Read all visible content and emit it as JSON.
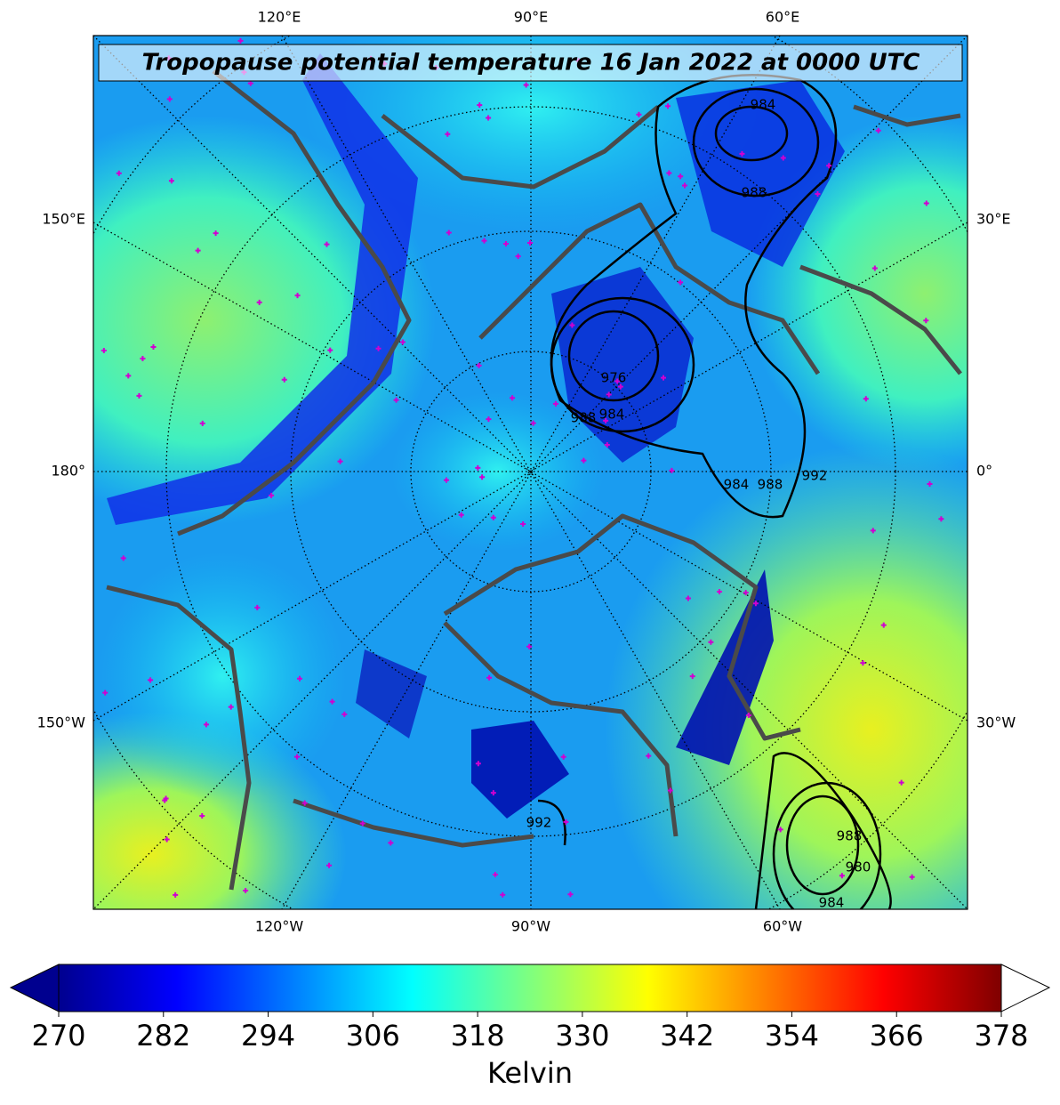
{
  "title": "Tropopause potential temperature 16 Jan 2022 at 0000 UTC",
  "lon_labels": {
    "top": [
      "120°E",
      "90°E",
      "60°E"
    ],
    "bottom": [
      "120°W",
      "90°W",
      "60°W"
    ]
  },
  "lat_labels": {
    "left": [
      "150°E",
      "180°",
      "150°W"
    ],
    "right": [
      "30°E",
      "0°",
      "30°W"
    ]
  },
  "contour_labels": [
    "984",
    "988",
    "976",
    "984",
    "988",
    "992",
    "984",
    "988",
    "992",
    "988",
    "980",
    "984"
  ],
  "colorbar": {
    "label": "Kelvin",
    "range": [
      270,
      378
    ],
    "ticks": [
      270,
      282,
      294,
      306,
      318,
      330,
      342,
      354,
      366,
      378
    ]
  }
}
